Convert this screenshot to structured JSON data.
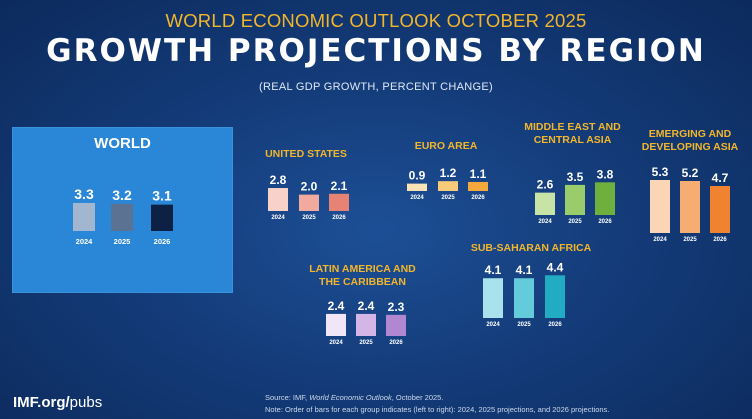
{
  "header": {
    "supertitle": "WORLD ECONOMIC OUTLOOK OCTOBER 2025",
    "title": "GROWTH PROJECTIONS BY REGION",
    "subtitle": "(REAL GDP GROWTH, PERCENT CHANGE)"
  },
  "footer": {
    "logo_main": "IMF.org/",
    "logo_sub": "pubs",
    "source_prefix": "Source:  IMF, ",
    "source_title": "World Economic Outlook",
    "source_suffix": ", October 2025.",
    "note": "Note:  Order of bars for each group indicates (left to right): 2024, 2025 projections, and 2026 projections."
  },
  "colors": {
    "label_gold": "#f2b62b",
    "world_panel": "#2a86d6"
  },
  "chart_data": [
    {
      "id": "world",
      "type": "bar",
      "title": "WORLD",
      "categories": [
        "2024",
        "2025",
        "2026"
      ],
      "values": [
        3.3,
        3.2,
        3.1
      ],
      "value_labels": [
        "3.3",
        "3.2",
        "3.1"
      ],
      "colors": [
        "#a3b6cf",
        "#5c7293",
        "#0d2144"
      ]
    },
    {
      "id": "us",
      "type": "bar",
      "title": "UNITED STATES",
      "categories": [
        "2024",
        "2025",
        "2026"
      ],
      "values": [
        2.8,
        2.0,
        2.1
      ],
      "value_labels": [
        "2.8",
        "2.0",
        "2.1"
      ],
      "colors": [
        "#f8d2c8",
        "#f1aa9e",
        "#e78374"
      ]
    },
    {
      "id": "euro",
      "type": "bar",
      "title": "EURO AREA",
      "categories": [
        "2024",
        "2025",
        "2026"
      ],
      "values": [
        0.9,
        1.2,
        1.1
      ],
      "value_labels": [
        "0.9",
        "1.2",
        "1.1"
      ],
      "colors": [
        "#fbe3b6",
        "#f8cb7b",
        "#f4a93c"
      ]
    },
    {
      "id": "mecas",
      "type": "bar",
      "title": "MIDDLE EAST AND CENTRAL ASIA",
      "categories": [
        "2024",
        "2025",
        "2026"
      ],
      "values": [
        2.6,
        3.5,
        3.8
      ],
      "value_labels": [
        "2.6",
        "3.5",
        "3.8"
      ],
      "colors": [
        "#c7e3a6",
        "#9bcc6c",
        "#6faf3e"
      ]
    },
    {
      "id": "eda",
      "type": "bar",
      "title": "EMERGING AND DEVELOPING ASIA",
      "categories": [
        "2024",
        "2025",
        "2026"
      ],
      "values": [
        5.3,
        5.2,
        4.7
      ],
      "value_labels": [
        "5.3",
        "5.2",
        "4.7"
      ],
      "colors": [
        "#fad6b7",
        "#f6ad72",
        "#f0832f"
      ]
    },
    {
      "id": "ssa",
      "type": "bar",
      "title": "SUB-SAHARAN AFRICA",
      "categories": [
        "2024",
        "2025",
        "2026"
      ],
      "values": [
        4.1,
        4.1,
        4.4
      ],
      "value_labels": [
        "4.1",
        "4.1",
        "4.4"
      ],
      "colors": [
        "#a9e2ec",
        "#64cbdb",
        "#21acc4"
      ]
    },
    {
      "id": "lac",
      "type": "bar",
      "title": "LATIN AMERICA AND THE CARIBBEAN",
      "categories": [
        "2024",
        "2025",
        "2026"
      ],
      "values": [
        2.4,
        2.4,
        2.3
      ],
      "value_labels": [
        "2.4",
        "2.4",
        "2.3"
      ],
      "colors": [
        "#f0e6f7",
        "#d3b6e6",
        "#b287d2"
      ]
    }
  ]
}
